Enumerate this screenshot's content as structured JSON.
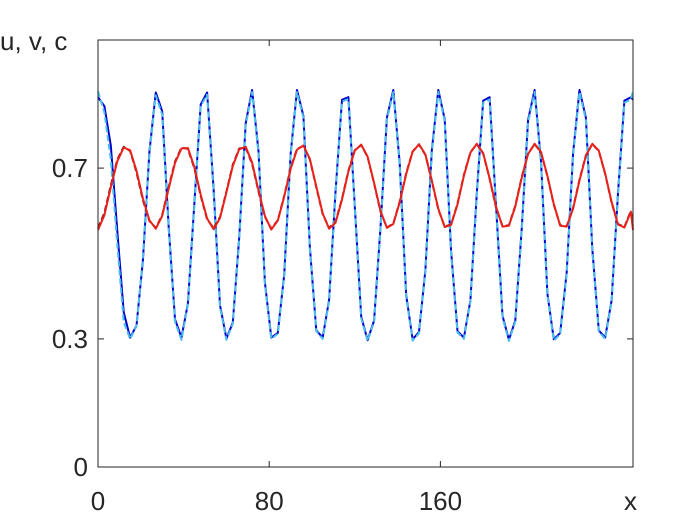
{
  "chart_data": {
    "type": "line",
    "title": "",
    "xlabel": "x",
    "ylabel": "u, v, c",
    "xlim": [
      0,
      250
    ],
    "ylim": [
      0,
      1
    ],
    "xticks": [
      0,
      80,
      160
    ],
    "xtick_labels": [
      "0",
      "80",
      "160"
    ],
    "yticks": [
      0,
      0.3,
      0.7
    ],
    "ytick_labels": [
      "0",
      "0.3",
      "0.7"
    ],
    "grid": false,
    "legend": "none",
    "series": [
      {
        "color": "#0000cc",
        "style": "solid",
        "x": [
          0,
          3,
          6,
          9,
          12,
          15,
          18,
          21,
          24,
          27,
          30,
          33,
          36,
          39,
          42,
          45,
          48,
          51,
          54,
          57,
          60,
          63,
          66,
          69,
          72,
          75,
          78,
          81,
          84,
          87,
          90,
          93,
          96,
          99,
          102,
          105,
          108,
          111,
          114,
          117,
          120,
          123,
          126,
          129,
          132,
          135,
          138,
          141,
          144,
          147,
          150,
          153,
          156,
          159,
          162,
          165,
          168,
          171,
          174,
          177,
          180,
          183,
          186,
          189,
          192,
          195,
          198,
          201,
          204,
          207,
          210,
          213,
          216,
          219,
          222,
          225,
          228,
          231,
          234,
          237,
          240,
          243,
          246,
          249,
          250
        ],
        "y": [
          0.866,
          0.845,
          0.753,
          0.553,
          0.363,
          0.303,
          0.331,
          0.484,
          0.738,
          0.877,
          0.833,
          0.565,
          0.346,
          0.303,
          0.383,
          0.615,
          0.849,
          0.877,
          0.651,
          0.379,
          0.301,
          0.338,
          0.537,
          0.805,
          0.883,
          0.739,
          0.432,
          0.303,
          0.314,
          0.45,
          0.732,
          0.883,
          0.822,
          0.513,
          0.32,
          0.303,
          0.391,
          0.644,
          0.86,
          0.866,
          0.61,
          0.352,
          0.297,
          0.343,
          0.561,
          0.818,
          0.883,
          0.711,
          0.402,
          0.299,
          0.316,
          0.461,
          0.741,
          0.883,
          0.814,
          0.505,
          0.318,
          0.303,
          0.39,
          0.641,
          0.858,
          0.866,
          0.613,
          0.354,
          0.298,
          0.343,
          0.557,
          0.813,
          0.883,
          0.716,
          0.406,
          0.299,
          0.314,
          0.456,
          0.735,
          0.883,
          0.818,
          0.511,
          0.32,
          0.303,
          0.39,
          0.641,
          0.858,
          0.866,
          0.86
        ]
      },
      {
        "color": "#4dbeee",
        "style": "dashed",
        "x": [
          0,
          3,
          6,
          9,
          12,
          15,
          18,
          21,
          24,
          27,
          30,
          33,
          36,
          39,
          42,
          45,
          48,
          51,
          54,
          57,
          60,
          63,
          66,
          69,
          72,
          75,
          78,
          81,
          84,
          87,
          90,
          93,
          96,
          99,
          102,
          105,
          108,
          111,
          114,
          117,
          120,
          123,
          126,
          129,
          132,
          135,
          138,
          141,
          144,
          147,
          150,
          153,
          156,
          159,
          162,
          165,
          168,
          171,
          174,
          177,
          180,
          183,
          186,
          189,
          192,
          195,
          198,
          201,
          204,
          207,
          210,
          213,
          216,
          219,
          222,
          225,
          228,
          231,
          234,
          237,
          240,
          243,
          246,
          249,
          250
        ],
        "y": [
          0.88,
          0.83,
          0.72,
          0.52,
          0.34,
          0.3,
          0.33,
          0.49,
          0.735,
          0.87,
          0.825,
          0.56,
          0.34,
          0.298,
          0.38,
          0.61,
          0.845,
          0.872,
          0.645,
          0.375,
          0.298,
          0.335,
          0.532,
          0.8,
          0.878,
          0.735,
          0.428,
          0.3,
          0.312,
          0.447,
          0.728,
          0.878,
          0.818,
          0.51,
          0.318,
          0.3,
          0.388,
          0.64,
          0.856,
          0.862,
          0.606,
          0.348,
          0.295,
          0.34,
          0.556,
          0.814,
          0.878,
          0.706,
          0.398,
          0.296,
          0.313,
          0.457,
          0.736,
          0.878,
          0.81,
          0.5,
          0.315,
          0.3,
          0.387,
          0.636,
          0.853,
          0.861,
          0.608,
          0.35,
          0.295,
          0.34,
          0.552,
          0.808,
          0.878,
          0.711,
          0.402,
          0.296,
          0.311,
          0.451,
          0.73,
          0.878,
          0.813,
          0.506,
          0.317,
          0.3,
          0.387,
          0.636,
          0.853,
          0.861,
          0.88
        ]
      },
      {
        "color": "#8b1010",
        "style": "dashed",
        "x": [
          0,
          3,
          6,
          9,
          12,
          15,
          18,
          21,
          24,
          27,
          30,
          33,
          36,
          39,
          42,
          45,
          48,
          51,
          54,
          57,
          60,
          63,
          66,
          69,
          72,
          75,
          78,
          81,
          84,
          87,
          90,
          93,
          96,
          99,
          102,
          105,
          108,
          111,
          114,
          117,
          120,
          123,
          126,
          129,
          132,
          135,
          138,
          141,
          144,
          147,
          150,
          153,
          156,
          159,
          162,
          165,
          168,
          171,
          174,
          177,
          180,
          183,
          186,
          189,
          192,
          195,
          198,
          201,
          204,
          207,
          210,
          213,
          216,
          219,
          222,
          225,
          228,
          231,
          234,
          237,
          240,
          243,
          246,
          249,
          250
        ],
        "y": [
          0.56,
          0.595,
          0.66,
          0.72,
          0.75,
          0.74,
          0.69,
          0.625,
          0.576,
          0.56,
          0.59,
          0.655,
          0.715,
          0.748,
          0.745,
          0.7,
          0.635,
          0.58,
          0.56,
          0.585,
          0.645,
          0.708,
          0.746,
          0.748,
          0.71,
          0.645,
          0.586,
          0.558,
          0.578,
          0.635,
          0.7,
          0.745,
          0.752,
          0.72,
          0.655,
          0.592,
          0.56,
          0.574,
          0.628,
          0.694,
          0.742,
          0.754,
          0.726,
          0.664,
          0.598,
          0.561,
          0.57,
          0.622,
          0.688,
          0.739,
          0.755,
          0.731,
          0.67,
          0.603,
          0.563,
          0.568,
          0.617,
          0.684,
          0.737,
          0.756,
          0.734,
          0.675,
          0.608,
          0.564,
          0.566,
          0.612,
          0.679,
          0.734,
          0.756,
          0.737,
          0.681,
          0.614,
          0.566,
          0.564,
          0.607,
          0.673,
          0.73,
          0.756,
          0.74,
          0.686,
          0.619,
          0.569,
          0.562,
          0.6,
          0.56
        ]
      },
      {
        "color": "#e8221b",
        "style": "solid",
        "x": [
          0,
          3,
          6,
          9,
          12,
          15,
          18,
          21,
          24,
          27,
          30,
          33,
          36,
          39,
          42,
          45,
          48,
          51,
          54,
          57,
          60,
          63,
          66,
          69,
          72,
          75,
          78,
          81,
          84,
          87,
          90,
          93,
          96,
          99,
          102,
          105,
          108,
          111,
          114,
          117,
          120,
          123,
          126,
          129,
          132,
          135,
          138,
          141,
          144,
          147,
          150,
          153,
          156,
          159,
          162,
          165,
          168,
          171,
          174,
          177,
          180,
          183,
          186,
          189,
          192,
          195,
          198,
          201,
          204,
          207,
          210,
          213,
          216,
          219,
          222,
          225,
          228,
          231,
          234,
          237,
          240,
          243,
          246,
          249,
          250
        ],
        "y": [
          0.555,
          0.59,
          0.655,
          0.716,
          0.748,
          0.742,
          0.694,
          0.629,
          0.578,
          0.558,
          0.588,
          0.651,
          0.712,
          0.746,
          0.747,
          0.703,
          0.638,
          0.582,
          0.557,
          0.583,
          0.643,
          0.705,
          0.744,
          0.75,
          0.713,
          0.648,
          0.588,
          0.556,
          0.577,
          0.633,
          0.698,
          0.743,
          0.753,
          0.721,
          0.657,
          0.594,
          0.558,
          0.572,
          0.626,
          0.692,
          0.741,
          0.755,
          0.727,
          0.665,
          0.6,
          0.56,
          0.569,
          0.62,
          0.686,
          0.738,
          0.756,
          0.732,
          0.671,
          0.605,
          0.562,
          0.567,
          0.615,
          0.682,
          0.736,
          0.757,
          0.735,
          0.676,
          0.61,
          0.563,
          0.565,
          0.61,
          0.677,
          0.733,
          0.757,
          0.738,
          0.682,
          0.616,
          0.565,
          0.563,
          0.605,
          0.671,
          0.729,
          0.757,
          0.741,
          0.687,
          0.621,
          0.568,
          0.561,
          0.598,
          0.555
        ]
      }
    ]
  }
}
